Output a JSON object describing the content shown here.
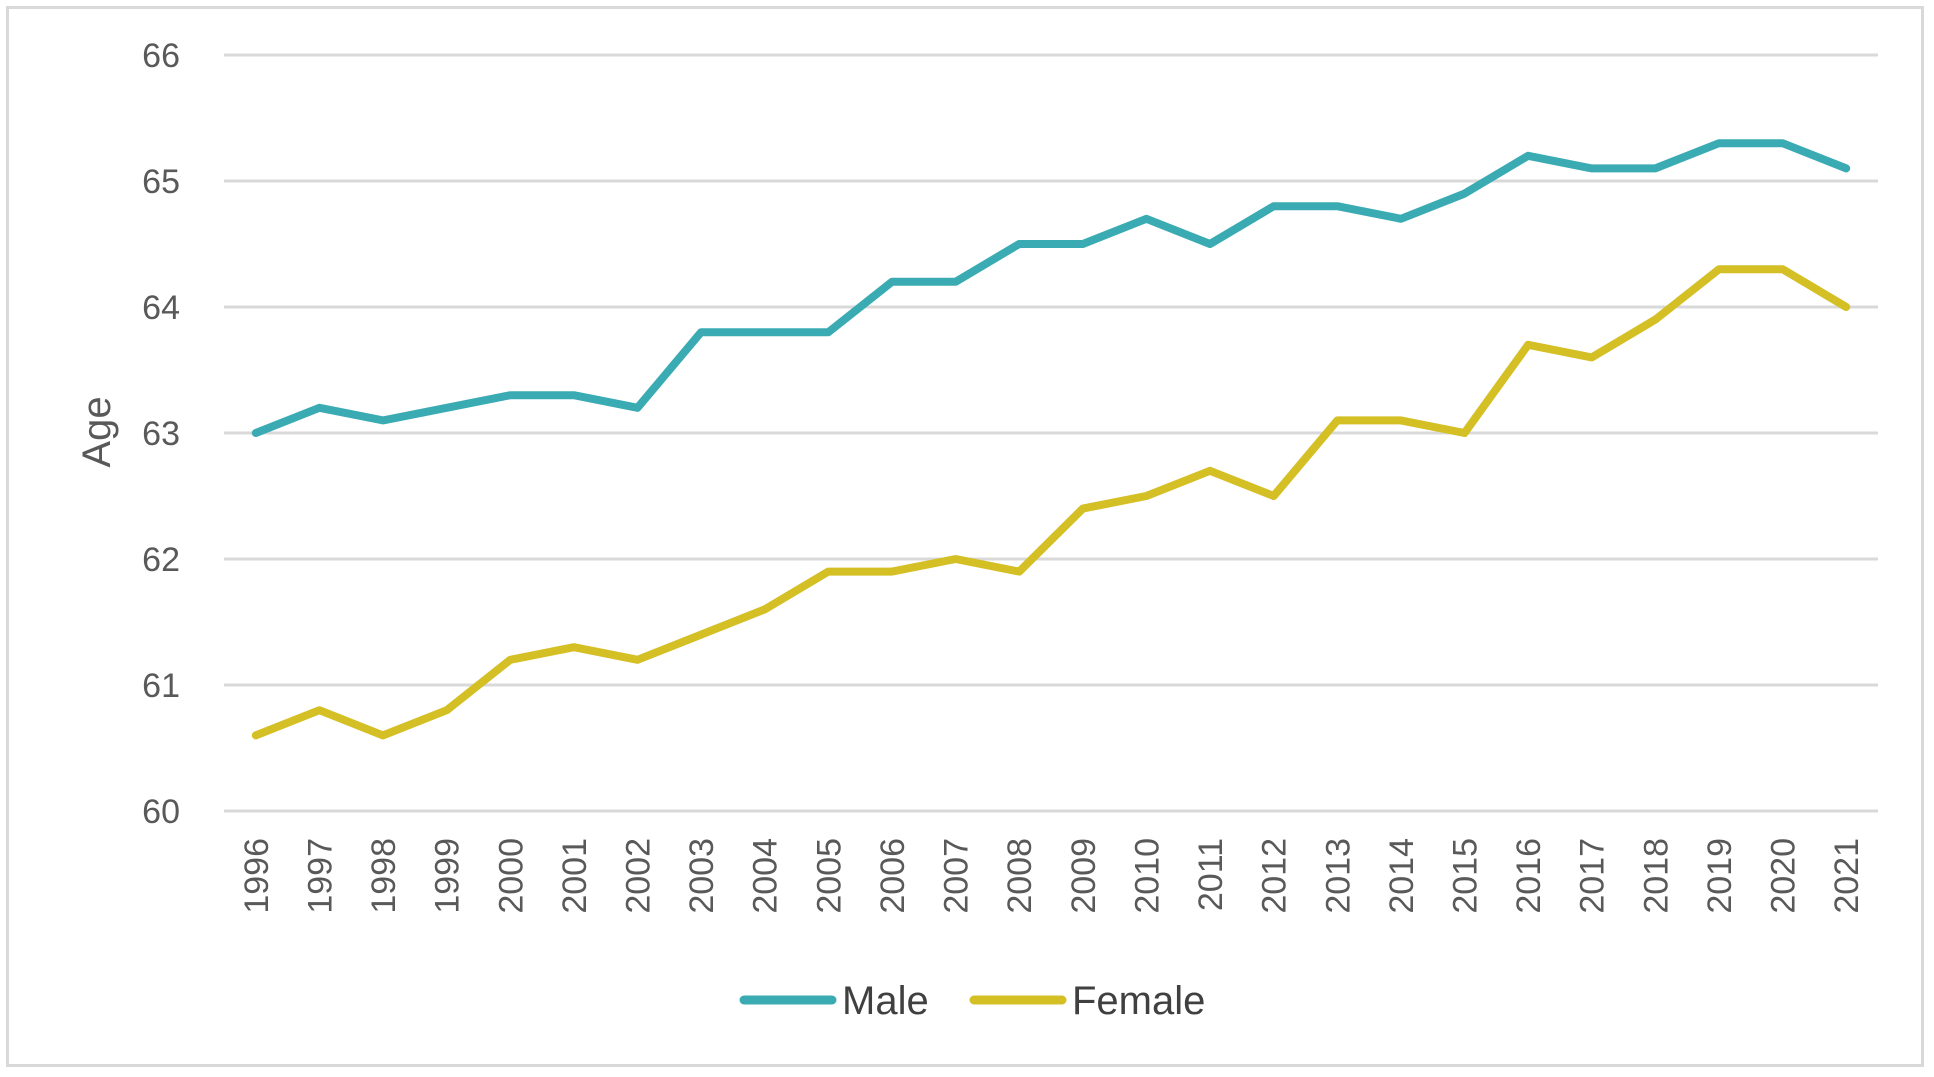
{
  "chart_data": {
    "type": "line",
    "title": "",
    "xlabel": "",
    "ylabel": "Age",
    "ylim": [
      60,
      66
    ],
    "yticks": [
      60,
      61,
      62,
      63,
      64,
      65,
      66
    ],
    "grid": true,
    "legend_position": "bottom",
    "categories": [
      "1996",
      "1997",
      "1998",
      "1999",
      "2000",
      "2001",
      "2002",
      "2003",
      "2004",
      "2005",
      "2006",
      "2007",
      "2008",
      "2009",
      "2010",
      "2011",
      "2012",
      "2013",
      "2014",
      "2015",
      "2016",
      "2017",
      "2018",
      "2019",
      "2020",
      "2021"
    ],
    "series": [
      {
        "name": "Male",
        "color": "#3aabb3",
        "values": [
          63.0,
          63.2,
          63.1,
          63.2,
          63.3,
          63.3,
          63.2,
          63.8,
          63.8,
          63.8,
          64.2,
          64.2,
          64.5,
          64.5,
          64.7,
          64.5,
          64.8,
          64.8,
          64.7,
          64.9,
          65.2,
          65.1,
          65.1,
          65.3,
          65.3,
          65.1
        ]
      },
      {
        "name": "Female",
        "color": "#d4bf25",
        "values": [
          60.6,
          60.8,
          60.6,
          60.8,
          61.2,
          61.3,
          61.2,
          61.4,
          61.6,
          61.9,
          61.9,
          62.0,
          61.9,
          62.4,
          62.5,
          62.7,
          62.5,
          63.1,
          63.1,
          63.0,
          63.7,
          63.6,
          63.9,
          64.3,
          64.3,
          64.0
        ]
      }
    ]
  }
}
